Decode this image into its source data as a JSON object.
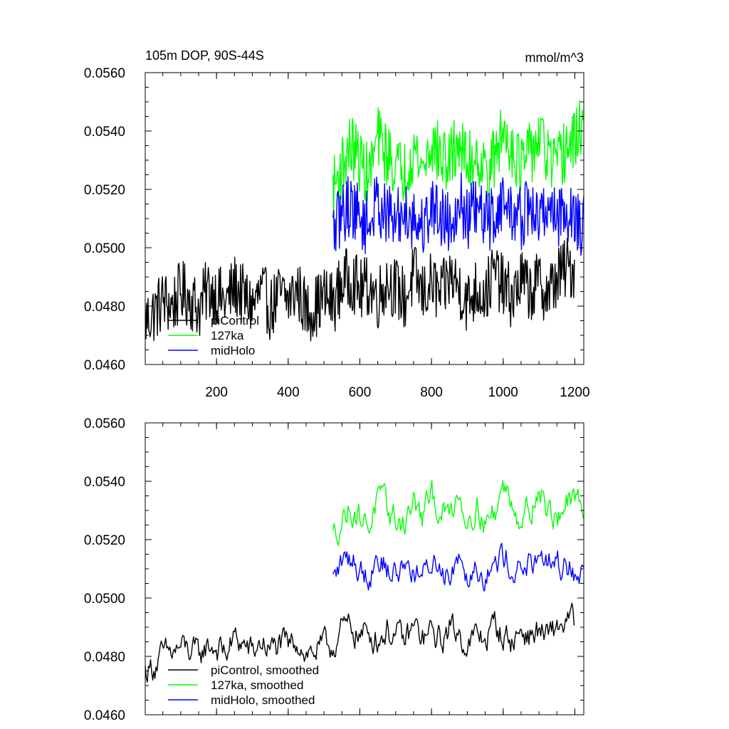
{
  "figure": {
    "title_left": "105m DOP, 90S-44S",
    "title_right": "mmol/m^3"
  },
  "chart_data": [
    {
      "type": "line",
      "title": "105m DOP, 90S-44S",
      "units": "mmol/m^3",
      "xlim": [
        1,
        1225
      ],
      "ylim": [
        0.046,
        0.056
      ],
      "xticks": [
        200,
        400,
        600,
        800,
        1000,
        1200
      ],
      "xtick_labels": [
        "200",
        "400",
        "600",
        "800",
        "1000",
        "1200"
      ],
      "yticks": [
        0.046,
        0.048,
        0.05,
        0.052,
        0.054,
        0.056
      ],
      "ytick_labels": [
        "0.0460",
        "0.0480",
        "0.0500",
        "0.0520",
        "0.0540",
        "0.0560"
      ],
      "grid": false,
      "legend_position": "bottom-left",
      "series": [
        {
          "name": "piControl",
          "color": "#000000",
          "x_range": [
            1,
            1200
          ],
          "values_every_25": [
            0.0475,
            0.0478,
            0.0482,
            0.048,
            0.0485,
            0.0483,
            0.0479,
            0.0486,
            0.0484,
            0.0481,
            0.0487,
            0.0483,
            0.048,
            0.0485,
            0.0479,
            0.0484,
            0.0482,
            0.0486,
            0.0478,
            0.048,
            0.0483,
            0.0481,
            0.0488,
            0.049,
            0.0485,
            0.0487,
            0.0483,
            0.0489,
            0.0486,
            0.0482,
            0.0491,
            0.0484,
            0.0488,
            0.0483,
            0.049,
            0.0487,
            0.0481,
            0.0486,
            0.0484,
            0.0492,
            0.0486,
            0.0483,
            0.0489,
            0.0485,
            0.0488,
            0.0484,
            0.049,
            0.0493
          ]
        },
        {
          "name": "127ka",
          "color": "#00ff00",
          "x_range": [
            525,
            1225
          ],
          "values_every_25": [
            0.052,
            0.0528,
            0.0535,
            0.053,
            0.0524,
            0.0538,
            0.0532,
            0.0528,
            0.0526,
            0.0534,
            0.0527,
            0.0536,
            0.0531,
            0.0529,
            0.0537,
            0.0528,
            0.0533,
            0.0526,
            0.053,
            0.054,
            0.0535,
            0.0528,
            0.0532,
            0.0538,
            0.0531,
            0.0527,
            0.0534,
            0.0536,
            0.0545
          ]
        },
        {
          "name": "midHolo",
          "color": "#0000ff",
          "x_range": [
            525,
            1225
          ],
          "values_every_25": [
            0.0505,
            0.0512,
            0.0515,
            0.051,
            0.0508,
            0.0516,
            0.0511,
            0.0509,
            0.0513,
            0.051,
            0.0507,
            0.0514,
            0.0512,
            0.0508,
            0.0517,
            0.051,
            0.0513,
            0.0509,
            0.0511,
            0.0516,
            0.0512,
            0.051,
            0.0514,
            0.0509,
            0.0515,
            0.0511,
            0.0513,
            0.051,
            0.0507
          ]
        }
      ]
    },
    {
      "type": "line",
      "xlim": [
        1,
        1225
      ],
      "ylim": [
        0.046,
        0.056
      ],
      "xticks": [
        200,
        400,
        600,
        800,
        1000,
        1200
      ],
      "yticks": [
        0.046,
        0.048,
        0.05,
        0.052,
        0.054,
        0.056
      ],
      "ytick_labels": [
        "0.0460",
        "0.0480",
        "0.0500",
        "0.0520",
        "0.0540",
        "0.0560"
      ],
      "grid": false,
      "legend_position": "bottom-left",
      "series": [
        {
          "name": "piControl, smoothed",
          "color": "#000000",
          "x_range": [
            1,
            1200
          ],
          "values_every_25": [
            0.0475,
            0.0477,
            0.048,
            0.0481,
            0.0483,
            0.0482,
            0.048,
            0.0484,
            0.0483,
            0.0481,
            0.0486,
            0.0484,
            0.0481,
            0.0485,
            0.0482,
            0.0484,
            0.0483,
            0.0486,
            0.0481,
            0.0482,
            0.0483,
            0.0484,
            0.0489,
            0.049,
            0.0487,
            0.0488,
            0.0486,
            0.0489,
            0.0487,
            0.0485,
            0.049,
            0.0486,
            0.0488,
            0.0485,
            0.049,
            0.0488,
            0.0484,
            0.0487,
            0.0486,
            0.0491,
            0.0487,
            0.0485,
            0.0489,
            0.0487,
            0.0489,
            0.0486,
            0.049,
            0.0492
          ]
        },
        {
          "name": "127ka, smoothed",
          "color": "#00ff00",
          "x_range": [
            525,
            1225
          ],
          "values_every_25": [
            0.0521,
            0.0527,
            0.0531,
            0.0528,
            0.0525,
            0.0534,
            0.053,
            0.0527,
            0.0526,
            0.0533,
            0.0527,
            0.0535,
            0.053,
            0.0528,
            0.0537,
            0.0527,
            0.0532,
            0.0526,
            0.0529,
            0.0538,
            0.0534,
            0.0527,
            0.0531,
            0.0537,
            0.053,
            0.0527,
            0.0533,
            0.0531,
            0.0533
          ]
        },
        {
          "name": "midHolo, smoothed",
          "color": "#0000ff",
          "x_range": [
            525,
            1225
          ],
          "values_every_25": [
            0.0506,
            0.0512,
            0.0514,
            0.051,
            0.0508,
            0.0515,
            0.051,
            0.0508,
            0.0512,
            0.051,
            0.0506,
            0.0513,
            0.0511,
            0.0508,
            0.0516,
            0.0509,
            0.0512,
            0.0508,
            0.051,
            0.0515,
            0.0511,
            0.0509,
            0.0513,
            0.0508,
            0.0514,
            0.051,
            0.0512,
            0.0509,
            0.0508
          ]
        }
      ]
    }
  ]
}
